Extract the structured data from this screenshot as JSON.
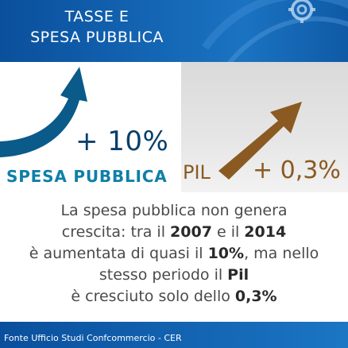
{
  "header": {
    "line1": "TASSE E",
    "line2": "SPESA PUBBLICA"
  },
  "spesa": {
    "value": "+ 10%",
    "label": "SPESA PUBBLICA"
  },
  "pil": {
    "label": "PIL",
    "value": "+ 0,3%"
  },
  "body": {
    "line1": "La spesa pubblica non genera",
    "line2_a": "crescita: tra il ",
    "line2_b": "2007",
    "line2_c": " e il ",
    "line2_d": "2014",
    "line3_a": "è aumentata di quasi il ",
    "line3_b": "10%",
    "line3_c": ", ma nello",
    "line4_a": "stesso periodo il ",
    "line4_b": "Pil",
    "line5_a": "è cresciuto solo dello ",
    "line5_b": "0,3%"
  },
  "footer": {
    "source": "Fonte Ufficio Studi Confcommercio - CER"
  },
  "colors": {
    "brand_blue": "#1466b4",
    "spesa_arrow": "#0a5a8a",
    "pil_arrow": "#8a5a22",
    "spesa_label": "#0f7fa8"
  },
  "icons": {
    "spesa_arrow": "curved-up-arrow-icon",
    "pil_arrow": "diagonal-up-arrow-icon",
    "gear": "gear-icon"
  }
}
